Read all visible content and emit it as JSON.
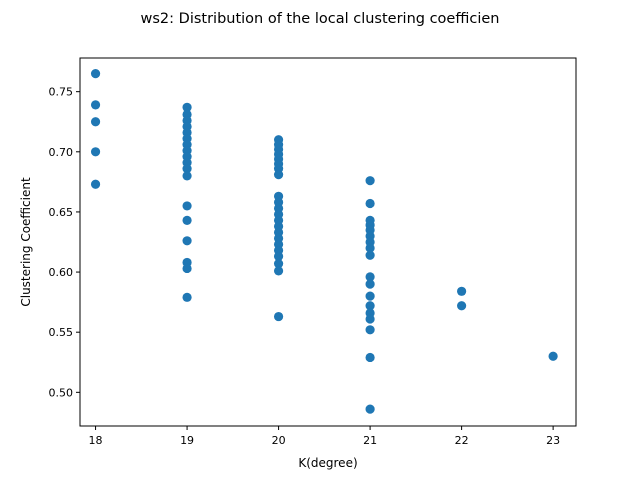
{
  "chart_data": {
    "type": "scatter",
    "title": "ws2: Distribution of the local clustering coefficien",
    "xlabel": "K(degree)",
    "ylabel": "Clustering Coefficient",
    "xlim": [
      17.83,
      23.25
    ],
    "ylim": [
      0.472,
      0.778
    ],
    "xticks": [
      18,
      19,
      20,
      21,
      22,
      23
    ],
    "yticks": [
      0.5,
      0.55,
      0.6,
      0.65,
      0.7,
      0.75
    ],
    "xtick_labels": [
      "18",
      "19",
      "20",
      "21",
      "22",
      "23"
    ],
    "ytick_labels": [
      "0.50",
      "0.55",
      "0.60",
      "0.65",
      "0.70",
      "0.75"
    ],
    "grid": false,
    "marker_color": "#1f77b4",
    "points": [
      {
        "x": 18,
        "y": 0.765
      },
      {
        "x": 18,
        "y": 0.739
      },
      {
        "x": 18,
        "y": 0.725
      },
      {
        "x": 18,
        "y": 0.7
      },
      {
        "x": 18,
        "y": 0.673
      },
      {
        "x": 19,
        "y": 0.737
      },
      {
        "x": 19,
        "y": 0.731
      },
      {
        "x": 19,
        "y": 0.726
      },
      {
        "x": 19,
        "y": 0.721
      },
      {
        "x": 19,
        "y": 0.716
      },
      {
        "x": 19,
        "y": 0.711
      },
      {
        "x": 19,
        "y": 0.706
      },
      {
        "x": 19,
        "y": 0.701
      },
      {
        "x": 19,
        "y": 0.696
      },
      {
        "x": 19,
        "y": 0.691
      },
      {
        "x": 19,
        "y": 0.686
      },
      {
        "x": 19,
        "y": 0.68
      },
      {
        "x": 19,
        "y": 0.655
      },
      {
        "x": 19,
        "y": 0.643
      },
      {
        "x": 19,
        "y": 0.626
      },
      {
        "x": 19,
        "y": 0.608
      },
      {
        "x": 19,
        "y": 0.603
      },
      {
        "x": 19,
        "y": 0.579
      },
      {
        "x": 20,
        "y": 0.71
      },
      {
        "x": 20,
        "y": 0.706
      },
      {
        "x": 20,
        "y": 0.702
      },
      {
        "x": 20,
        "y": 0.698
      },
      {
        "x": 20,
        "y": 0.694
      },
      {
        "x": 20,
        "y": 0.69
      },
      {
        "x": 20,
        "y": 0.686
      },
      {
        "x": 20,
        "y": 0.681
      },
      {
        "x": 20,
        "y": 0.663
      },
      {
        "x": 20,
        "y": 0.658
      },
      {
        "x": 20,
        "y": 0.653
      },
      {
        "x": 20,
        "y": 0.648
      },
      {
        "x": 20,
        "y": 0.643
      },
      {
        "x": 20,
        "y": 0.638
      },
      {
        "x": 20,
        "y": 0.633
      },
      {
        "x": 20,
        "y": 0.628
      },
      {
        "x": 20,
        "y": 0.623
      },
      {
        "x": 20,
        "y": 0.618
      },
      {
        "x": 20,
        "y": 0.613
      },
      {
        "x": 20,
        "y": 0.607
      },
      {
        "x": 20,
        "y": 0.601
      },
      {
        "x": 20,
        "y": 0.563
      },
      {
        "x": 21,
        "y": 0.676
      },
      {
        "x": 21,
        "y": 0.657
      },
      {
        "x": 21,
        "y": 0.643
      },
      {
        "x": 21,
        "y": 0.639
      },
      {
        "x": 21,
        "y": 0.635
      },
      {
        "x": 21,
        "y": 0.63
      },
      {
        "x": 21,
        "y": 0.625
      },
      {
        "x": 21,
        "y": 0.62
      },
      {
        "x": 21,
        "y": 0.614
      },
      {
        "x": 21,
        "y": 0.596
      },
      {
        "x": 21,
        "y": 0.59
      },
      {
        "x": 21,
        "y": 0.58
      },
      {
        "x": 21,
        "y": 0.572
      },
      {
        "x": 21,
        "y": 0.566
      },
      {
        "x": 21,
        "y": 0.561
      },
      {
        "x": 21,
        "y": 0.552
      },
      {
        "x": 21,
        "y": 0.529
      },
      {
        "x": 21,
        "y": 0.486
      },
      {
        "x": 22,
        "y": 0.584
      },
      {
        "x": 22,
        "y": 0.572
      },
      {
        "x": 23,
        "y": 0.53
      }
    ]
  }
}
